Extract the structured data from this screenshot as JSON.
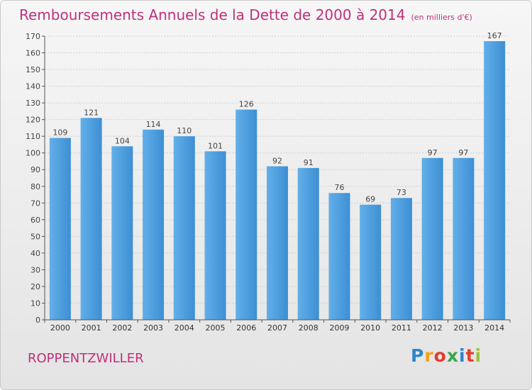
{
  "title": "Remboursements Annuels de la Dette de 2000 à 2014",
  "unit": "(en milliers d'€)",
  "place": "ROPPENTZWILLER",
  "logo": {
    "letters": [
      "P",
      "r",
      "o",
      "x",
      "i",
      "t",
      "i"
    ],
    "colors": [
      "#2f86c9",
      "#f2a11c",
      "#e23c2c",
      "#3aa64a",
      "#2f86c9",
      "#e23c2c",
      "#9bc23c"
    ]
  },
  "colors": {
    "bar": "#3d8fd4",
    "bar_light": "#62afe9",
    "accent": "#c0307a"
  },
  "chart_data": {
    "type": "bar",
    "title": "Remboursements Annuels de la Dette de 2000 à 2014",
    "categories": [
      "2000",
      "2001",
      "2002",
      "2003",
      "2004",
      "2005",
      "2006",
      "2007",
      "2008",
      "2009",
      "2010",
      "2011",
      "2012",
      "2013",
      "2014"
    ],
    "values": [
      109,
      121,
      104,
      114,
      110,
      101,
      126,
      92,
      91,
      76,
      69,
      73,
      97,
      97,
      167
    ],
    "ylim": [
      0,
      170
    ],
    "yticks": [
      0,
      10,
      20,
      30,
      40,
      50,
      60,
      70,
      80,
      90,
      100,
      110,
      120,
      130,
      140,
      150,
      160,
      170
    ],
    "grid": true,
    "xlabel": "",
    "ylabel": ""
  }
}
